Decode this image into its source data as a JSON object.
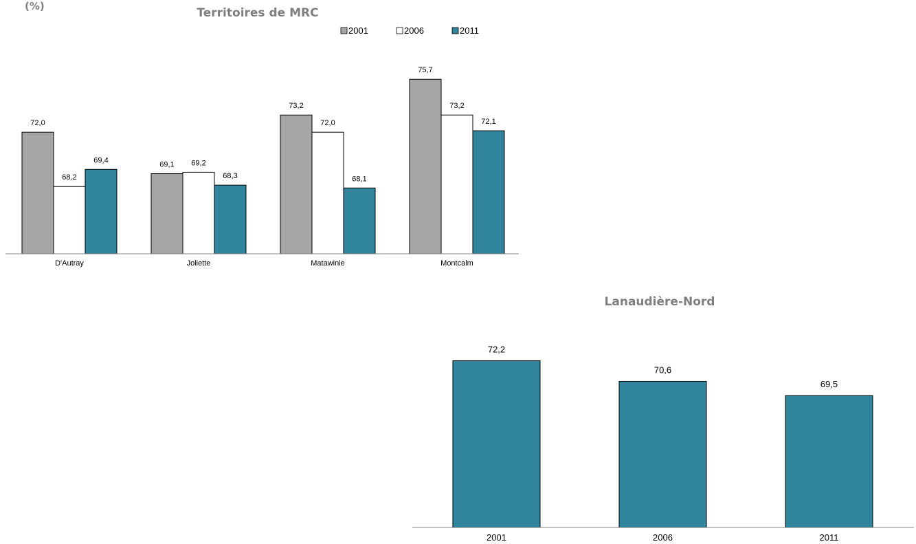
{
  "unit_label": "(%)",
  "colors": {
    "2001": "#a6a6a6",
    "2006": "#ffffff",
    "2011": "#31859c",
    "outline": "#000000",
    "axis": "#808080"
  },
  "chart_data": [
    {
      "type": "bar",
      "title": "Territoires de MRC",
      "categories": [
        "D'Autray",
        "Joliette",
        "Matawinie",
        "Montcalm"
      ],
      "series": [
        {
          "name": "2001",
          "values": [
            72.0,
            69.1,
            73.2,
            75.7
          ],
          "labels": [
            "72,0",
            "69,1",
            "73,2",
            "75,7"
          ]
        },
        {
          "name": "2006",
          "values": [
            68.2,
            69.2,
            72.0,
            73.2
          ],
          "labels": [
            "68,2",
            "69,2",
            "72,0",
            "73,2"
          ]
        },
        {
          "name": "2011",
          "values": [
            69.4,
            68.3,
            68.1,
            72.1
          ],
          "labels": [
            "69,4",
            "68,3",
            "68,1",
            "72,1"
          ]
        }
      ],
      "legend": "top",
      "grid": false
    },
    {
      "type": "bar",
      "title": "Lanaudière-Nord",
      "categories": [
        "2001",
        "2006",
        "2011"
      ],
      "values": [
        72.2,
        70.6,
        69.5
      ],
      "labels": [
        "72,2",
        "70,6",
        "69,5"
      ],
      "grid": false
    }
  ]
}
